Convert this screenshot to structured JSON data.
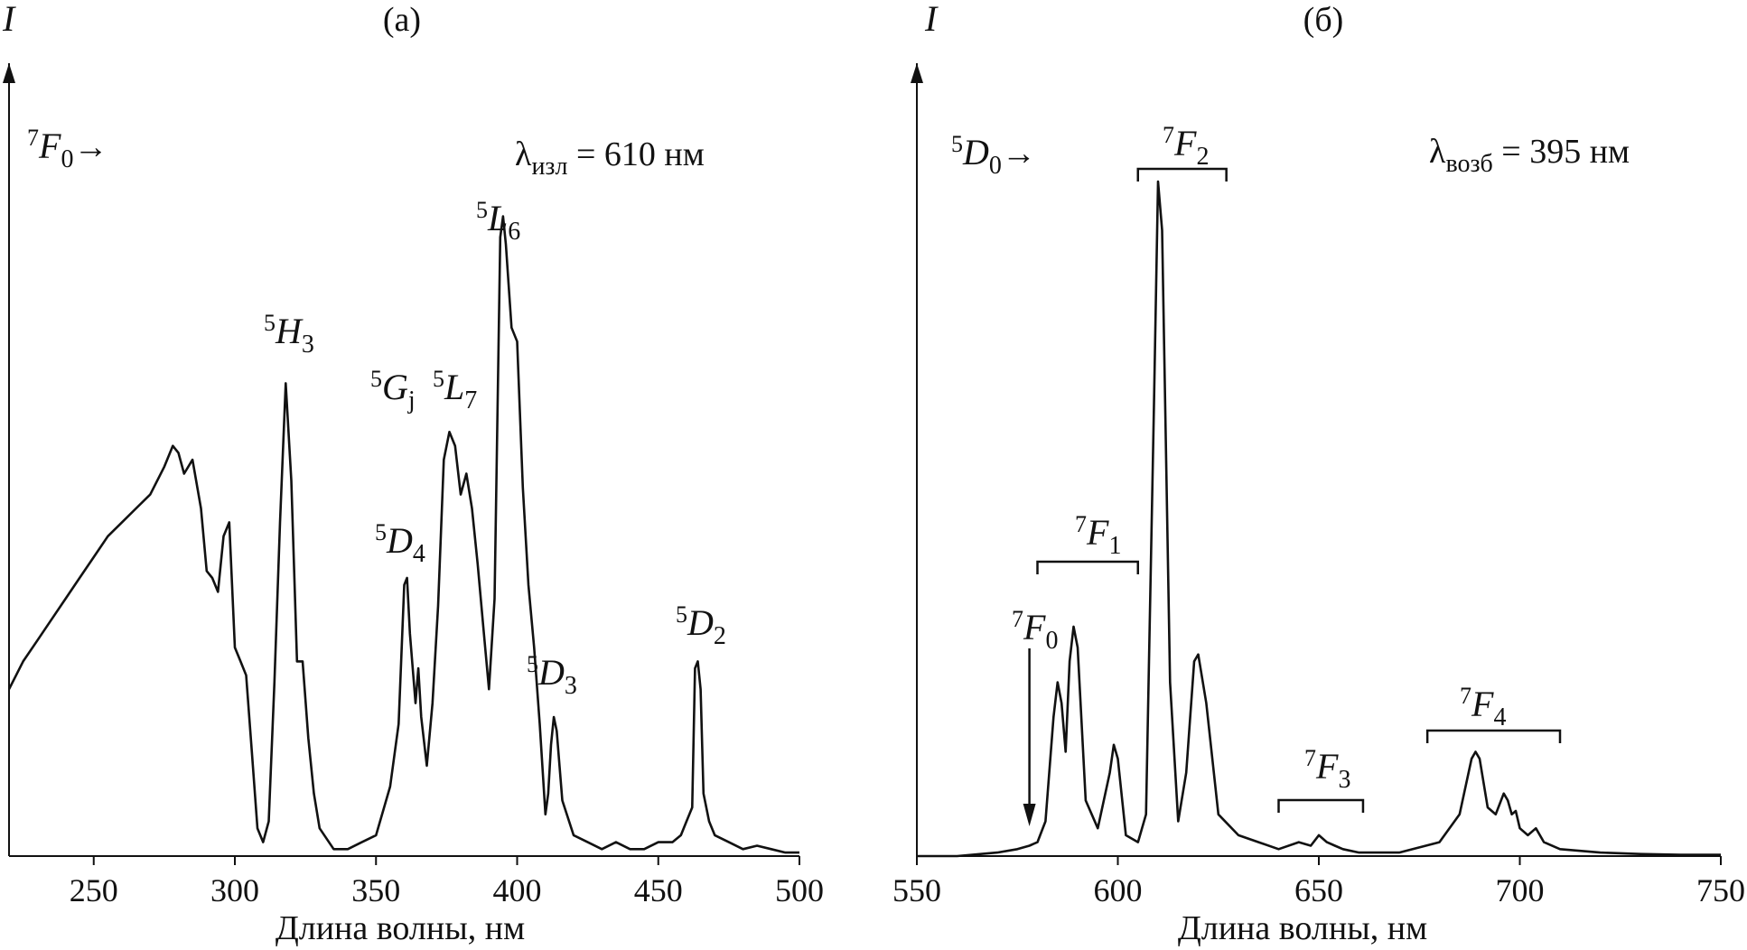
{
  "chart_data": [
    {
      "panel": "(а)",
      "type": "line",
      "xlabel": "Длина волны, нм",
      "ylabel": "I",
      "xlim": [
        220,
        500
      ],
      "ylim": [
        0,
        1
      ],
      "xticks": [
        250,
        300,
        350,
        400,
        450,
        500
      ],
      "grid": false,
      "transition": {
        "sup": "7",
        "main": "F",
        "sub": "0",
        "arrow": "→"
      },
      "lambda": {
        "sym": "λ",
        "sub": "изл",
        "eq": " = 610 нм"
      },
      "peaks": [
        {
          "sup": "5",
          "main": "H",
          "sub": "3"
        },
        {
          "sup": "5",
          "main": "G",
          "sub": "j"
        },
        {
          "sup": "5",
          "main": "L",
          "sub": "7"
        },
        {
          "sup": "5",
          "main": "L",
          "sub": "6"
        },
        {
          "sup": "5",
          "main": "D",
          "sub": "4"
        },
        {
          "sup": "5",
          "main": "D",
          "sub": "3"
        },
        {
          "sup": "5",
          "main": "D",
          "sub": "2"
        }
      ],
      "x": [
        220,
        225,
        230,
        235,
        240,
        245,
        250,
        255,
        260,
        265,
        270,
        275,
        278,
        280,
        282,
        285,
        288,
        290,
        292,
        294,
        296,
        298,
        300,
        302,
        304,
        306,
        308,
        310,
        312,
        314,
        316,
        318,
        320,
        322,
        324,
        326,
        328,
        330,
        335,
        340,
        345,
        350,
        355,
        358,
        360,
        361,
        362,
        363,
        364,
        365,
        366,
        368,
        370,
        372,
        374,
        376,
        378,
        380,
        382,
        384,
        386,
        388,
        390,
        392,
        394,
        395,
        396,
        398,
        400,
        402,
        404,
        406,
        408,
        410,
        411,
        412,
        413,
        414,
        416,
        420,
        425,
        430,
        435,
        440,
        445,
        450,
        455,
        458,
        460,
        462,
        463,
        464,
        465,
        466,
        468,
        470,
        475,
        480,
        485,
        490,
        495,
        500
      ],
      "y": [
        0.24,
        0.28,
        0.31,
        0.34,
        0.37,
        0.4,
        0.43,
        0.46,
        0.48,
        0.5,
        0.52,
        0.56,
        0.59,
        0.58,
        0.55,
        0.57,
        0.5,
        0.41,
        0.4,
        0.38,
        0.46,
        0.48,
        0.3,
        0.28,
        0.26,
        0.15,
        0.04,
        0.02,
        0.05,
        0.25,
        0.48,
        0.68,
        0.54,
        0.28,
        0.28,
        0.17,
        0.09,
        0.04,
        0.01,
        0.01,
        0.02,
        0.03,
        0.1,
        0.19,
        0.39,
        0.4,
        0.32,
        0.27,
        0.22,
        0.27,
        0.2,
        0.13,
        0.22,
        0.36,
        0.57,
        0.61,
        0.59,
        0.52,
        0.55,
        0.5,
        0.42,
        0.33,
        0.24,
        0.37,
        0.89,
        0.92,
        0.88,
        0.76,
        0.74,
        0.53,
        0.39,
        0.3,
        0.19,
        0.06,
        0.09,
        0.16,
        0.2,
        0.18,
        0.08,
        0.03,
        0.02,
        0.01,
        0.02,
        0.01,
        0.01,
        0.02,
        0.02,
        0.03,
        0.05,
        0.07,
        0.27,
        0.28,
        0.24,
        0.09,
        0.05,
        0.03,
        0.02,
        0.01,
        0.015,
        0.01,
        0.005,
        0.005
      ]
    },
    {
      "panel": "(б)",
      "type": "line",
      "xlabel": "Длина волны, нм",
      "ylabel": "I",
      "xlim": [
        550,
        750
      ],
      "ylim": [
        0,
        1
      ],
      "xticks": [
        550,
        600,
        650,
        700,
        750
      ],
      "grid": false,
      "transition": {
        "sup": "5",
        "main": "D",
        "sub": "0",
        "arrow": "→"
      },
      "lambda": {
        "sym": "λ",
        "sub": "возб",
        "eq": " = 395 нм"
      },
      "groups": [
        {
          "sup": "7",
          "main": "F",
          "sub": "0"
        },
        {
          "sup": "7",
          "main": "F",
          "sub": "1"
        },
        {
          "sup": "7",
          "main": "F",
          "sub": "2"
        },
        {
          "sup": "7",
          "main": "F",
          "sub": "3"
        },
        {
          "sup": "7",
          "main": "F",
          "sub": "4"
        }
      ],
      "x": [
        550,
        560,
        570,
        575,
        578,
        580,
        582,
        584,
        585,
        586,
        587,
        588,
        589,
        590,
        592,
        595,
        598,
        599,
        600,
        602,
        605,
        607,
        609,
        610,
        611,
        613,
        615,
        617,
        619,
        620,
        622,
        625,
        630,
        635,
        640,
        645,
        648,
        650,
        652,
        654,
        656,
        660,
        670,
        680,
        685,
        688,
        689,
        690,
        692,
        694,
        696,
        697,
        698,
        699,
        700,
        702,
        704,
        706,
        710,
        720,
        730,
        740,
        750
      ],
      "y": [
        0.0,
        0.0,
        0.005,
        0.01,
        0.015,
        0.02,
        0.05,
        0.2,
        0.25,
        0.22,
        0.15,
        0.28,
        0.33,
        0.3,
        0.08,
        0.04,
        0.12,
        0.16,
        0.14,
        0.03,
        0.02,
        0.06,
        0.65,
        0.97,
        0.9,
        0.25,
        0.05,
        0.12,
        0.28,
        0.29,
        0.22,
        0.06,
        0.03,
        0.02,
        0.01,
        0.02,
        0.015,
        0.03,
        0.02,
        0.015,
        0.01,
        0.005,
        0.005,
        0.02,
        0.06,
        0.14,
        0.15,
        0.14,
        0.07,
        0.06,
        0.09,
        0.08,
        0.06,
        0.065,
        0.04,
        0.03,
        0.04,
        0.02,
        0.01,
        0.005,
        0.003,
        0.002,
        0.002
      ]
    }
  ]
}
